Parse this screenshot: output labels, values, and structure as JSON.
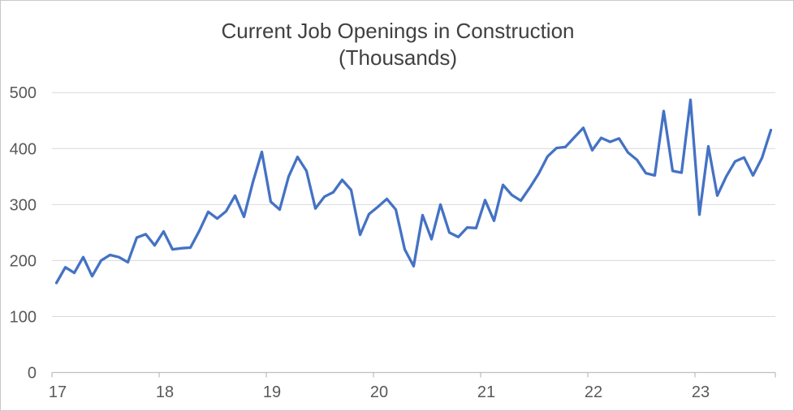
{
  "window": {
    "description": "Excel-style line chart of monthly construction job openings"
  },
  "colors": {
    "series": "#4472C4",
    "gridline": "#D9D9D9",
    "axis_line": "#BFBFBF",
    "tick_label": "#595959",
    "title_text": "#404040",
    "background": "#FFFFFF",
    "frame_border": "#C9C9C9"
  },
  "chart_data": {
    "type": "line",
    "title": "Current Job Openings in Construction",
    "subtitle": "(Thousands)",
    "frequency": "monthly",
    "x_start": "Jan 2017",
    "x_end": "Sep 2023",
    "x_tick_labels": [
      "17",
      "18",
      "19",
      "20",
      "21",
      "22",
      "23"
    ],
    "y_tick_labels": [
      "0",
      "100",
      "200",
      "300",
      "400",
      "500"
    ],
    "y_ticks": [
      0,
      100,
      200,
      300,
      400,
      500
    ],
    "ylim": [
      0,
      500
    ],
    "grid": "horizontal",
    "legend": "none",
    "values": [
      160,
      188,
      178,
      206,
      172,
      200,
      210,
      206,
      197,
      241,
      247,
      227,
      252,
      220,
      222,
      223,
      253,
      287,
      275,
      288,
      316,
      278,
      340,
      394,
      305,
      291,
      350,
      385,
      360,
      293,
      314,
      322,
      344,
      326,
      246,
      283,
      296,
      310,
      291,
      220,
      190,
      281,
      238,
      300,
      250,
      242,
      259,
      258,
      308,
      271,
      335,
      317,
      307,
      330,
      355,
      386,
      401,
      403,
      420,
      437,
      397,
      419,
      412,
      418,
      393,
      380,
      356,
      352,
      467,
      360,
      357,
      487,
      282,
      404,
      316,
      350,
      377,
      384,
      352,
      383,
      433
    ],
    "values_by_year": {
      "2017": [
        160,
        188,
        178,
        206,
        172,
        200,
        210,
        206,
        197,
        241,
        247,
        227
      ],
      "2018": [
        252,
        220,
        222,
        223,
        253,
        287,
        275,
        288,
        316,
        278,
        340,
        394
      ],
      "2019": [
        305,
        291,
        350,
        385,
        360,
        293,
        314,
        322,
        344,
        326,
        246,
        283
      ],
      "2020": [
        296,
        310,
        291,
        220,
        190,
        281,
        238,
        300,
        250,
        242,
        259,
        258
      ],
      "2021": [
        308,
        271,
        335,
        317,
        307,
        330,
        355,
        386,
        401,
        403,
        420,
        437
      ],
      "2022": [
        397,
        419,
        412,
        418,
        393,
        380,
        356,
        352,
        467,
        360,
        357,
        487
      ],
      "2023": [
        282,
        404,
        316,
        350,
        377,
        384,
        352,
        383,
        433
      ]
    }
  }
}
